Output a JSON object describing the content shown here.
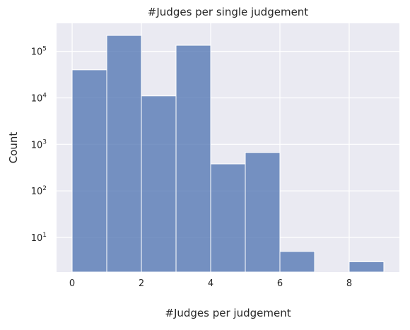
{
  "chart_data": {
    "type": "bar",
    "title": "#Judges per single judgement",
    "xlabel": "#Judges per judgement",
    "ylabel": "Count",
    "y_scale": "log",
    "grid": true,
    "legend": "none",
    "colors": {
      "bar": "#4c72b0",
      "plot_background": "#eaeaf2",
      "grid": "#ffffff"
    },
    "bins": [
      {
        "x_start": 0,
        "x_end": 1,
        "count": 40000
      },
      {
        "x_start": 1,
        "x_end": 2,
        "count": 220000
      },
      {
        "x_start": 2,
        "x_end": 3,
        "count": 11000
      },
      {
        "x_start": 3,
        "x_end": 4,
        "count": 135000
      },
      {
        "x_start": 4,
        "x_end": 5,
        "count": 380
      },
      {
        "x_start": 5,
        "x_end": 6,
        "count": 670
      },
      {
        "x_start": 6,
        "x_end": 7,
        "count": 5
      },
      {
        "x_start": 7,
        "x_end": 8,
        "count": 0
      },
      {
        "x_start": 8,
        "x_end": 9,
        "count": 3
      }
    ],
    "xlim": [
      -0.45,
      9.45
    ],
    "ylim": [
      1.8,
      400000
    ],
    "x_ticks": [
      {
        "value": 0,
        "label": "0"
      },
      {
        "value": 2,
        "label": "2"
      },
      {
        "value": 4,
        "label": "4"
      },
      {
        "value": 6,
        "label": "6"
      },
      {
        "value": 8,
        "label": "8"
      }
    ],
    "y_ticks": [
      {
        "value": 10,
        "base": "10",
        "exp": "1"
      },
      {
        "value": 100,
        "base": "10",
        "exp": "2"
      },
      {
        "value": 1000,
        "base": "10",
        "exp": "3"
      },
      {
        "value": 10000,
        "base": "10",
        "exp": "4"
      },
      {
        "value": 100000,
        "base": "10",
        "exp": "5"
      }
    ]
  }
}
